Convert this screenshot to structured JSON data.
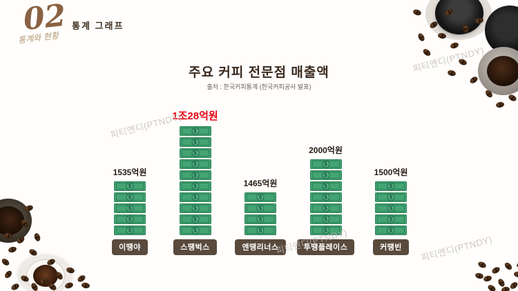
{
  "header": {
    "section_number": "02",
    "section_script": "통계와 현황",
    "section_label": "통계 그래프"
  },
  "chart": {
    "title": "주요 커피 전문점 매출액",
    "source": "출처 : 한국커피통계 (한국커피공사 발표)",
    "bill_symbol": "$",
    "columns": [
      {
        "name": "이땡야",
        "value_label": "1535억원",
        "bills": 5,
        "highlight": false
      },
      {
        "name": "스땡벅스",
        "value_label": "1조28억원",
        "bills": 10,
        "highlight": true
      },
      {
        "name": "엔땡리너스",
        "value_label": "1465억원",
        "bills": 4,
        "highlight": false
      },
      {
        "name": "투땡플레이스",
        "value_label": "2000억원",
        "bills": 7,
        "highlight": false
      },
      {
        "name": "커땡빈",
        "value_label": "1500억원",
        "bills": 5,
        "highlight": false
      }
    ]
  },
  "chart_data": {
    "type": "bar",
    "subtype": "pictograph-money-stack",
    "title": "주요 커피 전문점 매출액",
    "source": "출처 : 한국커피통계 (한국커피공사 발표)",
    "categories": [
      "이땡야",
      "스땡벅스",
      "엔땡리너스",
      "투땡플레이스",
      "커땡빈"
    ],
    "value_labels": [
      "1535억원",
      "1조28억원",
      "1465억원",
      "2000억원",
      "1500억원"
    ],
    "values_eokwon": [
      1535,
      10028,
      1465,
      2000,
      1500
    ],
    "icon_counts": [
      5,
      10,
      4,
      7,
      5
    ],
    "unit": "억원",
    "highlight_index": 1,
    "highlight_color": "#e30613",
    "icon_color": "#43a474",
    "legend": "none",
    "grid": false
  },
  "watermark": "피티엔디(PTNDY)",
  "colors": {
    "title_text": "#3a2a1e",
    "accent_red": "#e30613",
    "pill_bg": "#594a3d",
    "bill_green": "#43a474",
    "section_brown": "#8a6243"
  }
}
